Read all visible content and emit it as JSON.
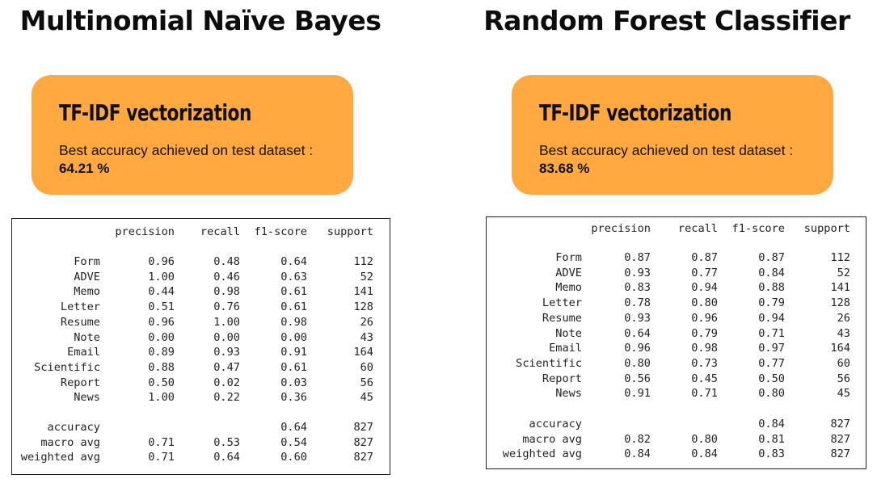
{
  "panels": [
    {
      "model_title": "Multinomial Naïve Bayes",
      "card": {
        "heading": "TF-IDF vectorization",
        "line": "Best accuracy achieved on test dataset :",
        "value": "64.21 %"
      },
      "report": {
        "headers": [
          "precision",
          "recall",
          "f1-score",
          "support"
        ],
        "rows": [
          {
            "label": "Form",
            "precision": "0.96",
            "recall": "0.48",
            "f1": "0.64",
            "support": "112"
          },
          {
            "label": "ADVE",
            "precision": "1.00",
            "recall": "0.46",
            "f1": "0.63",
            "support": "52"
          },
          {
            "label": "Memo",
            "precision": "0.44",
            "recall": "0.98",
            "f1": "0.61",
            "support": "141"
          },
          {
            "label": "Letter",
            "precision": "0.51",
            "recall": "0.76",
            "f1": "0.61",
            "support": "128"
          },
          {
            "label": "Resume",
            "precision": "0.96",
            "recall": "1.00",
            "f1": "0.98",
            "support": "26"
          },
          {
            "label": "Note",
            "precision": "0.00",
            "recall": "0.00",
            "f1": "0.00",
            "support": "43"
          },
          {
            "label": "Email",
            "precision": "0.89",
            "recall": "0.93",
            "f1": "0.91",
            "support": "164"
          },
          {
            "label": "Scientific",
            "precision": "0.88",
            "recall": "0.47",
            "f1": "0.61",
            "support": "60"
          },
          {
            "label": "Report",
            "precision": "0.50",
            "recall": "0.02",
            "f1": "0.03",
            "support": "56"
          },
          {
            "label": "News",
            "precision": "1.00",
            "recall": "0.22",
            "f1": "0.36",
            "support": "45"
          }
        ],
        "summary": [
          {
            "label": "accuracy",
            "precision": "",
            "recall": "",
            "f1": "0.64",
            "support": "827"
          },
          {
            "label": "macro avg",
            "precision": "0.71",
            "recall": "0.53",
            "f1": "0.54",
            "support": "827"
          },
          {
            "label": "weighted avg",
            "precision": "0.71",
            "recall": "0.64",
            "f1": "0.60",
            "support": "827"
          }
        ]
      }
    },
    {
      "model_title": "Random Forest Classifier",
      "card": {
        "heading": "TF-IDF vectorization",
        "line": "Best accuracy achieved on test dataset :",
        "value": "83.68 %"
      },
      "report": {
        "headers": [
          "precision",
          "recall",
          "f1-score",
          "support"
        ],
        "rows": [
          {
            "label": "Form",
            "precision": "0.87",
            "recall": "0.87",
            "f1": "0.87",
            "support": "112"
          },
          {
            "label": "ADVE",
            "precision": "0.93",
            "recall": "0.77",
            "f1": "0.84",
            "support": "52"
          },
          {
            "label": "Memo",
            "precision": "0.83",
            "recall": "0.94",
            "f1": "0.88",
            "support": "141"
          },
          {
            "label": "Letter",
            "precision": "0.78",
            "recall": "0.80",
            "f1": "0.79",
            "support": "128"
          },
          {
            "label": "Resume",
            "precision": "0.93",
            "recall": "0.96",
            "f1": "0.94",
            "support": "26"
          },
          {
            "label": "Note",
            "precision": "0.64",
            "recall": "0.79",
            "f1": "0.71",
            "support": "43"
          },
          {
            "label": "Email",
            "precision": "0.96",
            "recall": "0.98",
            "f1": "0.97",
            "support": "164"
          },
          {
            "label": "Scientific",
            "precision": "0.80",
            "recall": "0.73",
            "f1": "0.77",
            "support": "60"
          },
          {
            "label": "Report",
            "precision": "0.56",
            "recall": "0.45",
            "f1": "0.50",
            "support": "56"
          },
          {
            "label": "News",
            "precision": "0.91",
            "recall": "0.71",
            "f1": "0.80",
            "support": "45"
          }
        ],
        "summary": [
          {
            "label": "accuracy",
            "precision": "",
            "recall": "",
            "f1": "0.84",
            "support": "827"
          },
          {
            "label": "macro avg",
            "precision": "0.82",
            "recall": "0.80",
            "f1": "0.81",
            "support": "827"
          },
          {
            "label": "weighted avg",
            "precision": "0.84",
            "recall": "0.84",
            "f1": "0.83",
            "support": "827"
          }
        ]
      }
    }
  ],
  "colors": {
    "card": "#FFA940",
    "text": "#111111",
    "border": "#222222"
  }
}
